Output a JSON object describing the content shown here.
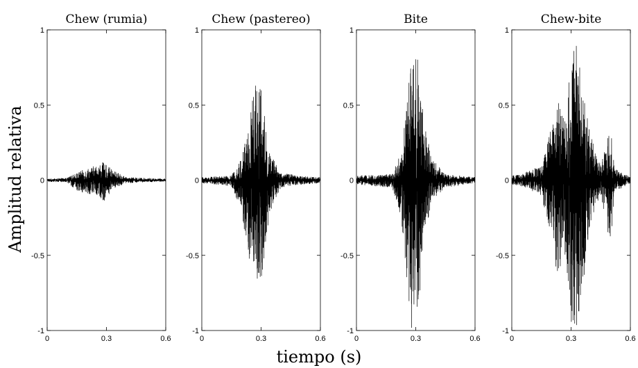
{
  "figure": {
    "ylabel": "Amplitud relativa",
    "xlabel": "tiempo (s)"
  },
  "chart_data": [
    {
      "type": "line",
      "title": "Chew (rumia)",
      "xlim": [
        0,
        0.6
      ],
      "ylim": [
        -1,
        1
      ],
      "xticks": [
        0,
        0.3,
        0.6
      ],
      "xtick_labels": [
        "0",
        "0.3",
        "0.6"
      ],
      "yticks": [
        -1,
        -0.5,
        0,
        0.5,
        1
      ],
      "ytick_labels": [
        "-1",
        "-0.5",
        "0",
        "0.5",
        "1"
      ],
      "envelope": {
        "t": [
          0,
          0.1,
          0.15,
          0.2,
          0.25,
          0.28,
          0.3,
          0.33,
          0.4,
          0.5,
          0.6
        ],
        "upper": [
          0.01,
          0.015,
          0.05,
          0.08,
          0.1,
          0.12,
          0.1,
          0.07,
          0.02,
          0.015,
          0.01
        ],
        "lower": [
          -0.01,
          -0.015,
          -0.07,
          -0.09,
          -0.1,
          -0.15,
          -0.12,
          -0.06,
          -0.02,
          -0.015,
          -0.01
        ]
      },
      "series": [
        {
          "color": "#000000"
        }
      ]
    },
    {
      "type": "line",
      "title": "Chew (pastereo)",
      "xlim": [
        0,
        0.6
      ],
      "ylim": [
        -1,
        1
      ],
      "xticks": [
        0,
        0.3,
        0.6
      ],
      "xtick_labels": [
        "0",
        "0.3",
        "0.6"
      ],
      "yticks": [
        -1,
        -0.5,
        0,
        0.5,
        1
      ],
      "ytick_labels": [
        "-1",
        "-0.5",
        "0",
        "0.5",
        "1"
      ],
      "envelope": {
        "t": [
          0,
          0.15,
          0.2,
          0.24,
          0.27,
          0.29,
          0.31,
          0.34,
          0.4,
          0.5,
          0.6
        ],
        "upper": [
          0.02,
          0.03,
          0.15,
          0.45,
          0.65,
          0.8,
          0.5,
          0.2,
          0.05,
          0.03,
          0.02
        ],
        "lower": [
          -0.02,
          -0.04,
          -0.2,
          -0.55,
          -0.6,
          -0.8,
          -0.6,
          -0.25,
          -0.05,
          -0.03,
          -0.02
        ]
      },
      "series": [
        {
          "color": "#000000"
        }
      ]
    },
    {
      "type": "line",
      "title": "Bite",
      "xlim": [
        0,
        0.6
      ],
      "ylim": [
        -1,
        1
      ],
      "xticks": [
        0,
        0.3,
        0.6
      ],
      "xtick_labels": [
        "0",
        "0.3",
        "0.6"
      ],
      "yticks": [
        -1,
        -0.5,
        0,
        0.5,
        1
      ],
      "ytick_labels": [
        "-1",
        "-0.5",
        "0",
        "0.5",
        "1"
      ],
      "envelope": {
        "t": [
          0,
          0.18,
          0.23,
          0.26,
          0.28,
          0.3,
          0.32,
          0.34,
          0.38,
          0.45,
          0.6
        ],
        "upper": [
          0.03,
          0.04,
          0.2,
          0.6,
          0.85,
          0.93,
          0.7,
          0.4,
          0.15,
          0.04,
          0.02
        ],
        "lower": [
          -0.03,
          -0.05,
          -0.3,
          -0.75,
          -1.0,
          -1.0,
          -0.8,
          -0.4,
          -0.15,
          -0.05,
          -0.02
        ]
      },
      "series": [
        {
          "color": "#000000"
        }
      ]
    },
    {
      "type": "line",
      "title": "Chew-bite",
      "xlim": [
        0,
        0.6
      ],
      "ylim": [
        -1,
        1
      ],
      "xticks": [
        0,
        0.3,
        0.6
      ],
      "xtick_labels": [
        "0",
        "0.3",
        "0.6"
      ],
      "yticks": [
        -1,
        -0.5,
        0,
        0.5,
        1
      ],
      "ytick_labels": [
        "-1",
        "-0.5",
        "0",
        "0.5",
        "1"
      ],
      "envelope": {
        "t": [
          0,
          0.05,
          0.15,
          0.2,
          0.23,
          0.27,
          0.3,
          0.33,
          0.36,
          0.4,
          0.45,
          0.5,
          0.52,
          0.6
        ],
        "upper": [
          0.03,
          0.04,
          0.1,
          0.35,
          0.55,
          0.4,
          0.8,
          1.0,
          0.6,
          0.3,
          0.1,
          0.35,
          0.08,
          0.02
        ],
        "lower": [
          -0.03,
          -0.04,
          -0.1,
          -0.4,
          -0.65,
          -0.5,
          -1.0,
          -1.0,
          -0.7,
          -0.3,
          -0.1,
          -0.45,
          -0.08,
          -0.02
        ]
      },
      "series": [
        {
          "color": "#000000"
        }
      ]
    }
  ]
}
